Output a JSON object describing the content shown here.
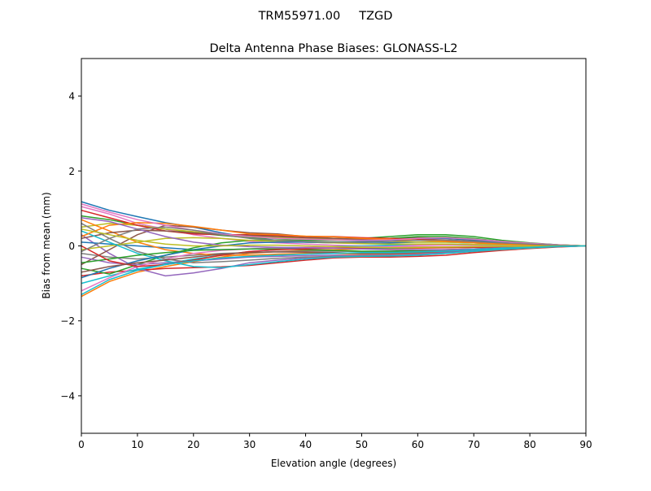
{
  "chart_data": {
    "type": "line",
    "suptitle": "TRM55971.00     TZGD",
    "title": "Delta Antenna Phase Biases: GLONASS-L2",
    "xlabel": "Elevation angle (degrees)",
    "ylabel": "Bias from mean (mm)",
    "xlim": [
      0,
      90
    ],
    "ylim": [
      -5,
      5
    ],
    "xticks": [
      0,
      10,
      20,
      30,
      40,
      50,
      60,
      70,
      80,
      90
    ],
    "xtick_labels": [
      "0",
      "10",
      "20",
      "30",
      "40",
      "50",
      "60",
      "70",
      "80",
      "90"
    ],
    "yticks": [
      -4,
      -2,
      0,
      2,
      4
    ],
    "ytick_labels": [
      "−4",
      "−2",
      "0",
      "2",
      "4"
    ],
    "grid": false,
    "colors": [
      "#1f77b4",
      "#ff7f0e",
      "#2ca02c",
      "#d62728",
      "#9467bd",
      "#8c564b",
      "#e377c2",
      "#7f7f7f",
      "#bcbd22",
      "#17becf"
    ],
    "x": [
      0,
      5,
      10,
      15,
      20,
      25,
      30,
      35,
      40,
      45,
      50,
      55,
      60,
      65,
      70,
      75,
      80,
      85,
      90
    ],
    "series": [
      {
        "values": [
          1.18,
          0.95,
          0.78,
          0.62,
          0.5,
          0.35,
          0.22,
          0.15,
          0.1,
          0.08,
          0.07,
          0.08,
          0.1,
          0.1,
          0.08,
          0.05,
          0.03,
          0.01,
          0
        ]
      },
      {
        "values": [
          -1.35,
          -0.95,
          -0.7,
          -0.55,
          -0.42,
          -0.3,
          -0.2,
          -0.15,
          -0.12,
          -0.1,
          -0.08,
          -0.07,
          -0.06,
          -0.05,
          -0.04,
          -0.03,
          -0.02,
          -0.01,
          0
        ]
      },
      {
        "values": [
          0.8,
          0.7,
          0.55,
          0.45,
          0.35,
          0.28,
          0.22,
          0.2,
          0.18,
          0.18,
          0.2,
          0.25,
          0.3,
          0.3,
          0.25,
          0.15,
          0.08,
          0.03,
          0
        ]
      },
      {
        "values": [
          -0.8,
          -0.7,
          -0.65,
          -0.6,
          -0.58,
          -0.56,
          -0.52,
          -0.45,
          -0.38,
          -0.32,
          -0.3,
          -0.3,
          -0.28,
          -0.25,
          -0.18,
          -0.12,
          -0.07,
          -0.03,
          0
        ]
      },
      {
        "values": [
          0.3,
          -0.2,
          -0.6,
          -0.8,
          -0.72,
          -0.6,
          -0.45,
          -0.38,
          -0.32,
          -0.28,
          -0.25,
          -0.22,
          -0.2,
          -0.18,
          -0.12,
          -0.08,
          -0.05,
          -0.02,
          0
        ]
      },
      {
        "values": [
          -0.5,
          -0.1,
          0.3,
          0.55,
          0.5,
          0.42,
          0.35,
          0.32,
          0.25,
          0.2,
          0.18,
          0.2,
          0.22,
          0.2,
          0.15,
          0.1,
          0.06,
          0.02,
          0
        ]
      },
      {
        "values": [
          1.05,
          0.85,
          0.6,
          0.45,
          0.3,
          0.2,
          0.12,
          0.08,
          0.05,
          0.02,
          0,
          0,
          0.02,
          0.03,
          0.02,
          0.01,
          0.01,
          0,
          0
        ]
      },
      {
        "values": [
          -0.2,
          -0.3,
          -0.35,
          -0.3,
          -0.25,
          -0.2,
          -0.18,
          -0.15,
          -0.14,
          -0.14,
          -0.15,
          -0.15,
          -0.14,
          -0.12,
          -0.1,
          -0.07,
          -0.04,
          -0.02,
          0
        ]
      },
      {
        "values": [
          0.5,
          0.6,
          0.55,
          0.45,
          0.38,
          0.3,
          0.25,
          0.22,
          0.2,
          0.18,
          0.15,
          0.12,
          0.1,
          0.1,
          0.08,
          0.05,
          0.03,
          0.01,
          0
        ]
      },
      {
        "values": [
          -1.0,
          -0.8,
          -0.62,
          -0.48,
          -0.35,
          -0.25,
          -0.15,
          -0.1,
          -0.05,
          -0.02,
          0,
          0.02,
          0.05,
          0.05,
          0.04,
          0.03,
          0.02,
          0.01,
          0
        ]
      },
      {
        "values": [
          0.1,
          0.05,
          0.0,
          -0.05,
          -0.1,
          -0.1,
          -0.08,
          -0.06,
          -0.05,
          -0.05,
          -0.06,
          -0.06,
          -0.05,
          -0.04,
          -0.03,
          -0.02,
          -0.01,
          0,
          0
        ]
      },
      {
        "values": [
          0.7,
          0.4,
          0.1,
          -0.1,
          -0.2,
          -0.25,
          -0.25,
          -0.22,
          -0.2,
          -0.2,
          -0.22,
          -0.22,
          -0.2,
          -0.18,
          -0.14,
          -0.1,
          -0.06,
          -0.02,
          0
        ]
      },
      {
        "values": [
          -0.6,
          -0.75,
          -0.5,
          -0.25,
          -0.05,
          0.08,
          0.15,
          0.16,
          0.15,
          0.15,
          0.16,
          0.2,
          0.25,
          0.25,
          0.2,
          0.12,
          0.07,
          0.03,
          0
        ]
      },
      {
        "values": [
          0.95,
          0.75,
          0.55,
          0.4,
          0.32,
          0.3,
          0.3,
          0.28,
          0.25,
          0.25,
          0.22,
          0.2,
          0.18,
          0.16,
          0.12,
          0.08,
          0.05,
          0.02,
          0
        ]
      },
      {
        "values": [
          -0.3,
          -0.45,
          -0.5,
          -0.45,
          -0.4,
          -0.35,
          -0.3,
          -0.28,
          -0.26,
          -0.25,
          -0.25,
          -0.24,
          -0.22,
          -0.18,
          -0.12,
          -0.08,
          -0.05,
          -0.02,
          0
        ]
      },
      {
        "values": [
          0.2,
          0.35,
          0.42,
          0.4,
          0.35,
          0.3,
          0.28,
          0.25,
          0.22,
          0.2,
          0.18,
          0.16,
          0.15,
          0.14,
          0.1,
          0.07,
          0.04,
          0.02,
          0
        ]
      },
      {
        "values": [
          -1.2,
          -0.85,
          -0.55,
          -0.35,
          -0.2,
          -0.12,
          -0.08,
          -0.05,
          -0.04,
          -0.03,
          -0.02,
          -0.02,
          -0.02,
          -0.02,
          -0.02,
          -0.01,
          -0.01,
          0,
          0
        ]
      },
      {
        "values": [
          0.6,
          0.2,
          -0.15,
          -0.35,
          -0.45,
          -0.42,
          -0.38,
          -0.33,
          -0.3,
          -0.28,
          -0.27,
          -0.26,
          -0.24,
          -0.2,
          -0.15,
          -0.1,
          -0.06,
          -0.02,
          0
        ]
      },
      {
        "values": [
          -0.1,
          0.0,
          0.1,
          0.2,
          0.22,
          0.2,
          0.15,
          0.12,
          0.1,
          0.08,
          0.06,
          0.05,
          0.05,
          0.05,
          0.04,
          0.03,
          0.02,
          0.01,
          0
        ]
      },
      {
        "values": [
          0.4,
          0.1,
          -0.2,
          -0.4,
          -0.55,
          -0.58,
          -0.5,
          -0.42,
          -0.35,
          -0.3,
          -0.28,
          -0.27,
          -0.25,
          -0.2,
          -0.14,
          -0.09,
          -0.05,
          -0.02,
          0
        ]
      },
      {
        "values": [
          -0.85,
          -0.6,
          -0.4,
          -0.25,
          -0.1,
          0.0,
          0.08,
          0.1,
          0.1,
          0.1,
          0.12,
          0.15,
          0.2,
          0.2,
          0.16,
          0.1,
          0.06,
          0.02,
          0
        ]
      },
      {
        "values": [
          0.25,
          0.55,
          0.62,
          0.6,
          0.52,
          0.42,
          0.32,
          0.3,
          0.26,
          0.24,
          0.2,
          0.18,
          0.15,
          0.12,
          0.08,
          0.05,
          0.03,
          0.01,
          0
        ]
      },
      {
        "values": [
          -0.45,
          -0.35,
          -0.25,
          -0.18,
          -0.12,
          -0.1,
          -0.08,
          -0.08,
          -0.1,
          -0.12,
          -0.14,
          -0.14,
          -0.12,
          -0.1,
          -0.08,
          -0.05,
          -0.03,
          -0.01,
          0
        ]
      },
      {
        "values": [
          0.0,
          -0.4,
          -0.55,
          -0.5,
          -0.38,
          -0.25,
          -0.15,
          -0.1,
          -0.08,
          -0.06,
          -0.05,
          -0.05,
          -0.05,
          -0.05,
          -0.04,
          -0.03,
          -0.02,
          -0.01,
          0
        ]
      },
      {
        "values": [
          0.75,
          0.65,
          0.45,
          0.25,
          0.1,
          0.02,
          -0.02,
          -0.04,
          -0.05,
          -0.06,
          -0.08,
          -0.1,
          -0.1,
          -0.1,
          -0.08,
          -0.05,
          -0.03,
          -0.01,
          0
        ]
      },
      {
        "values": [
          -0.7,
          -0.55,
          -0.45,
          -0.38,
          -0.3,
          -0.22,
          -0.18,
          -0.16,
          -0.17,
          -0.18,
          -0.2,
          -0.2,
          -0.18,
          -0.15,
          -0.1,
          -0.06,
          -0.04,
          -0.01,
          0
        ]
      },
      {
        "values": [
          1.12,
          0.9,
          0.7,
          0.55,
          0.42,
          0.32,
          0.25,
          0.2,
          0.18,
          0.16,
          0.15,
          0.16,
          0.2,
          0.22,
          0.18,
          0.12,
          0.07,
          0.03,
          0
        ]
      },
      {
        "values": [
          -0.15,
          0.2,
          0.45,
          0.5,
          0.42,
          0.3,
          0.2,
          0.15,
          0.12,
          0.1,
          0.1,
          0.12,
          0.15,
          0.16,
          0.12,
          0.08,
          0.05,
          0.02,
          0
        ]
      },
      {
        "values": [
          0.45,
          0.3,
          0.15,
          0.05,
          0.0,
          0.0,
          0.02,
          0.02,
          0.0,
          -0.02,
          -0.04,
          -0.05,
          -0.04,
          -0.03,
          -0.02,
          -0.01,
          -0.01,
          0,
          0
        ]
      },
      {
        "values": [
          -1.3,
          -0.9,
          -0.65,
          -0.5,
          -0.4,
          -0.32,
          -0.28,
          -0.25,
          -0.22,
          -0.2,
          -0.18,
          -0.18,
          -0.16,
          -0.14,
          -0.1,
          -0.06,
          -0.04,
          -0.01,
          0
        ]
      }
    ]
  }
}
